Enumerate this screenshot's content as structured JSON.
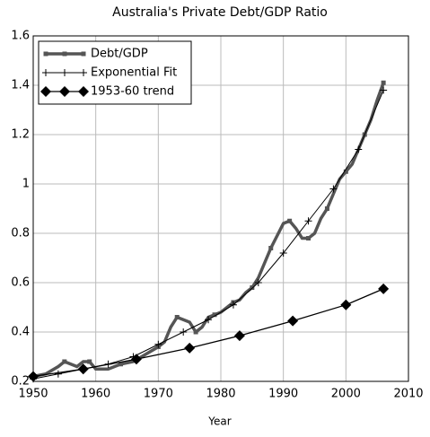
{
  "chart_data": {
    "type": "line",
    "title": "Australia's Private Debt/GDP Ratio",
    "xlabel": "Year",
    "xlim": [
      1950,
      2010
    ],
    "xticks": [
      1950,
      1960,
      1970,
      1980,
      1990,
      2000,
      2010
    ],
    "ylim": [
      0.2,
      1.6
    ],
    "yticks": [
      0.2,
      0.4,
      0.6,
      0.8,
      1,
      1.2,
      1.4,
      1.6
    ],
    "grid": true,
    "legend": "upper left",
    "series": [
      {
        "name": "Debt/GDP",
        "color": "#555555",
        "marker": "square",
        "x": [
          1950,
          1952,
          1954,
          1955,
          1957,
          1958,
          1959,
          1960,
          1962,
          1964,
          1966,
          1968,
          1970,
          1971,
          1972,
          1973,
          1974,
          1975,
          1976,
          1977,
          1978,
          1979,
          1980,
          1981,
          1982,
          1983,
          1984,
          1985,
          1986,
          1987,
          1988,
          1989,
          1990,
          1991,
          1992,
          1993,
          1994,
          1995,
          1996,
          1997,
          1998,
          1999,
          2000,
          2001,
          2002,
          2003,
          2004,
          2005,
          2006
        ],
        "values": [
          0.22,
          0.23,
          0.26,
          0.28,
          0.26,
          0.28,
          0.28,
          0.25,
          0.25,
          0.27,
          0.28,
          0.31,
          0.34,
          0.36,
          0.42,
          0.46,
          0.45,
          0.44,
          0.4,
          0.42,
          0.46,
          0.47,
          0.48,
          0.5,
          0.52,
          0.53,
          0.56,
          0.58,
          0.62,
          0.68,
          0.74,
          0.79,
          0.84,
          0.85,
          0.82,
          0.78,
          0.78,
          0.8,
          0.86,
          0.9,
          0.96,
          1.02,
          1.05,
          1.08,
          1.14,
          1.2,
          1.26,
          1.34,
          1.41
        ]
      },
      {
        "name": "Exponential Fit",
        "color": "#000000",
        "marker": "plus",
        "x": [
          1950,
          1954,
          1958,
          1962,
          1966,
          1970,
          1974,
          1978,
          1982,
          1986,
          1990,
          1994,
          1998,
          2002,
          2006
        ],
        "values": [
          0.21,
          0.23,
          0.25,
          0.27,
          0.3,
          0.35,
          0.4,
          0.45,
          0.51,
          0.6,
          0.72,
          0.85,
          0.98,
          1.14,
          1.38
        ]
      },
      {
        "name": "1953-60 trend",
        "color": "#000000",
        "marker": "diamond",
        "x": [
          1950,
          1958,
          1966.5,
          1975,
          1983,
          1991.5,
          2000,
          2006
        ],
        "values": [
          0.22,
          0.25,
          0.29,
          0.335,
          0.385,
          0.445,
          0.51,
          0.575
        ]
      }
    ]
  }
}
